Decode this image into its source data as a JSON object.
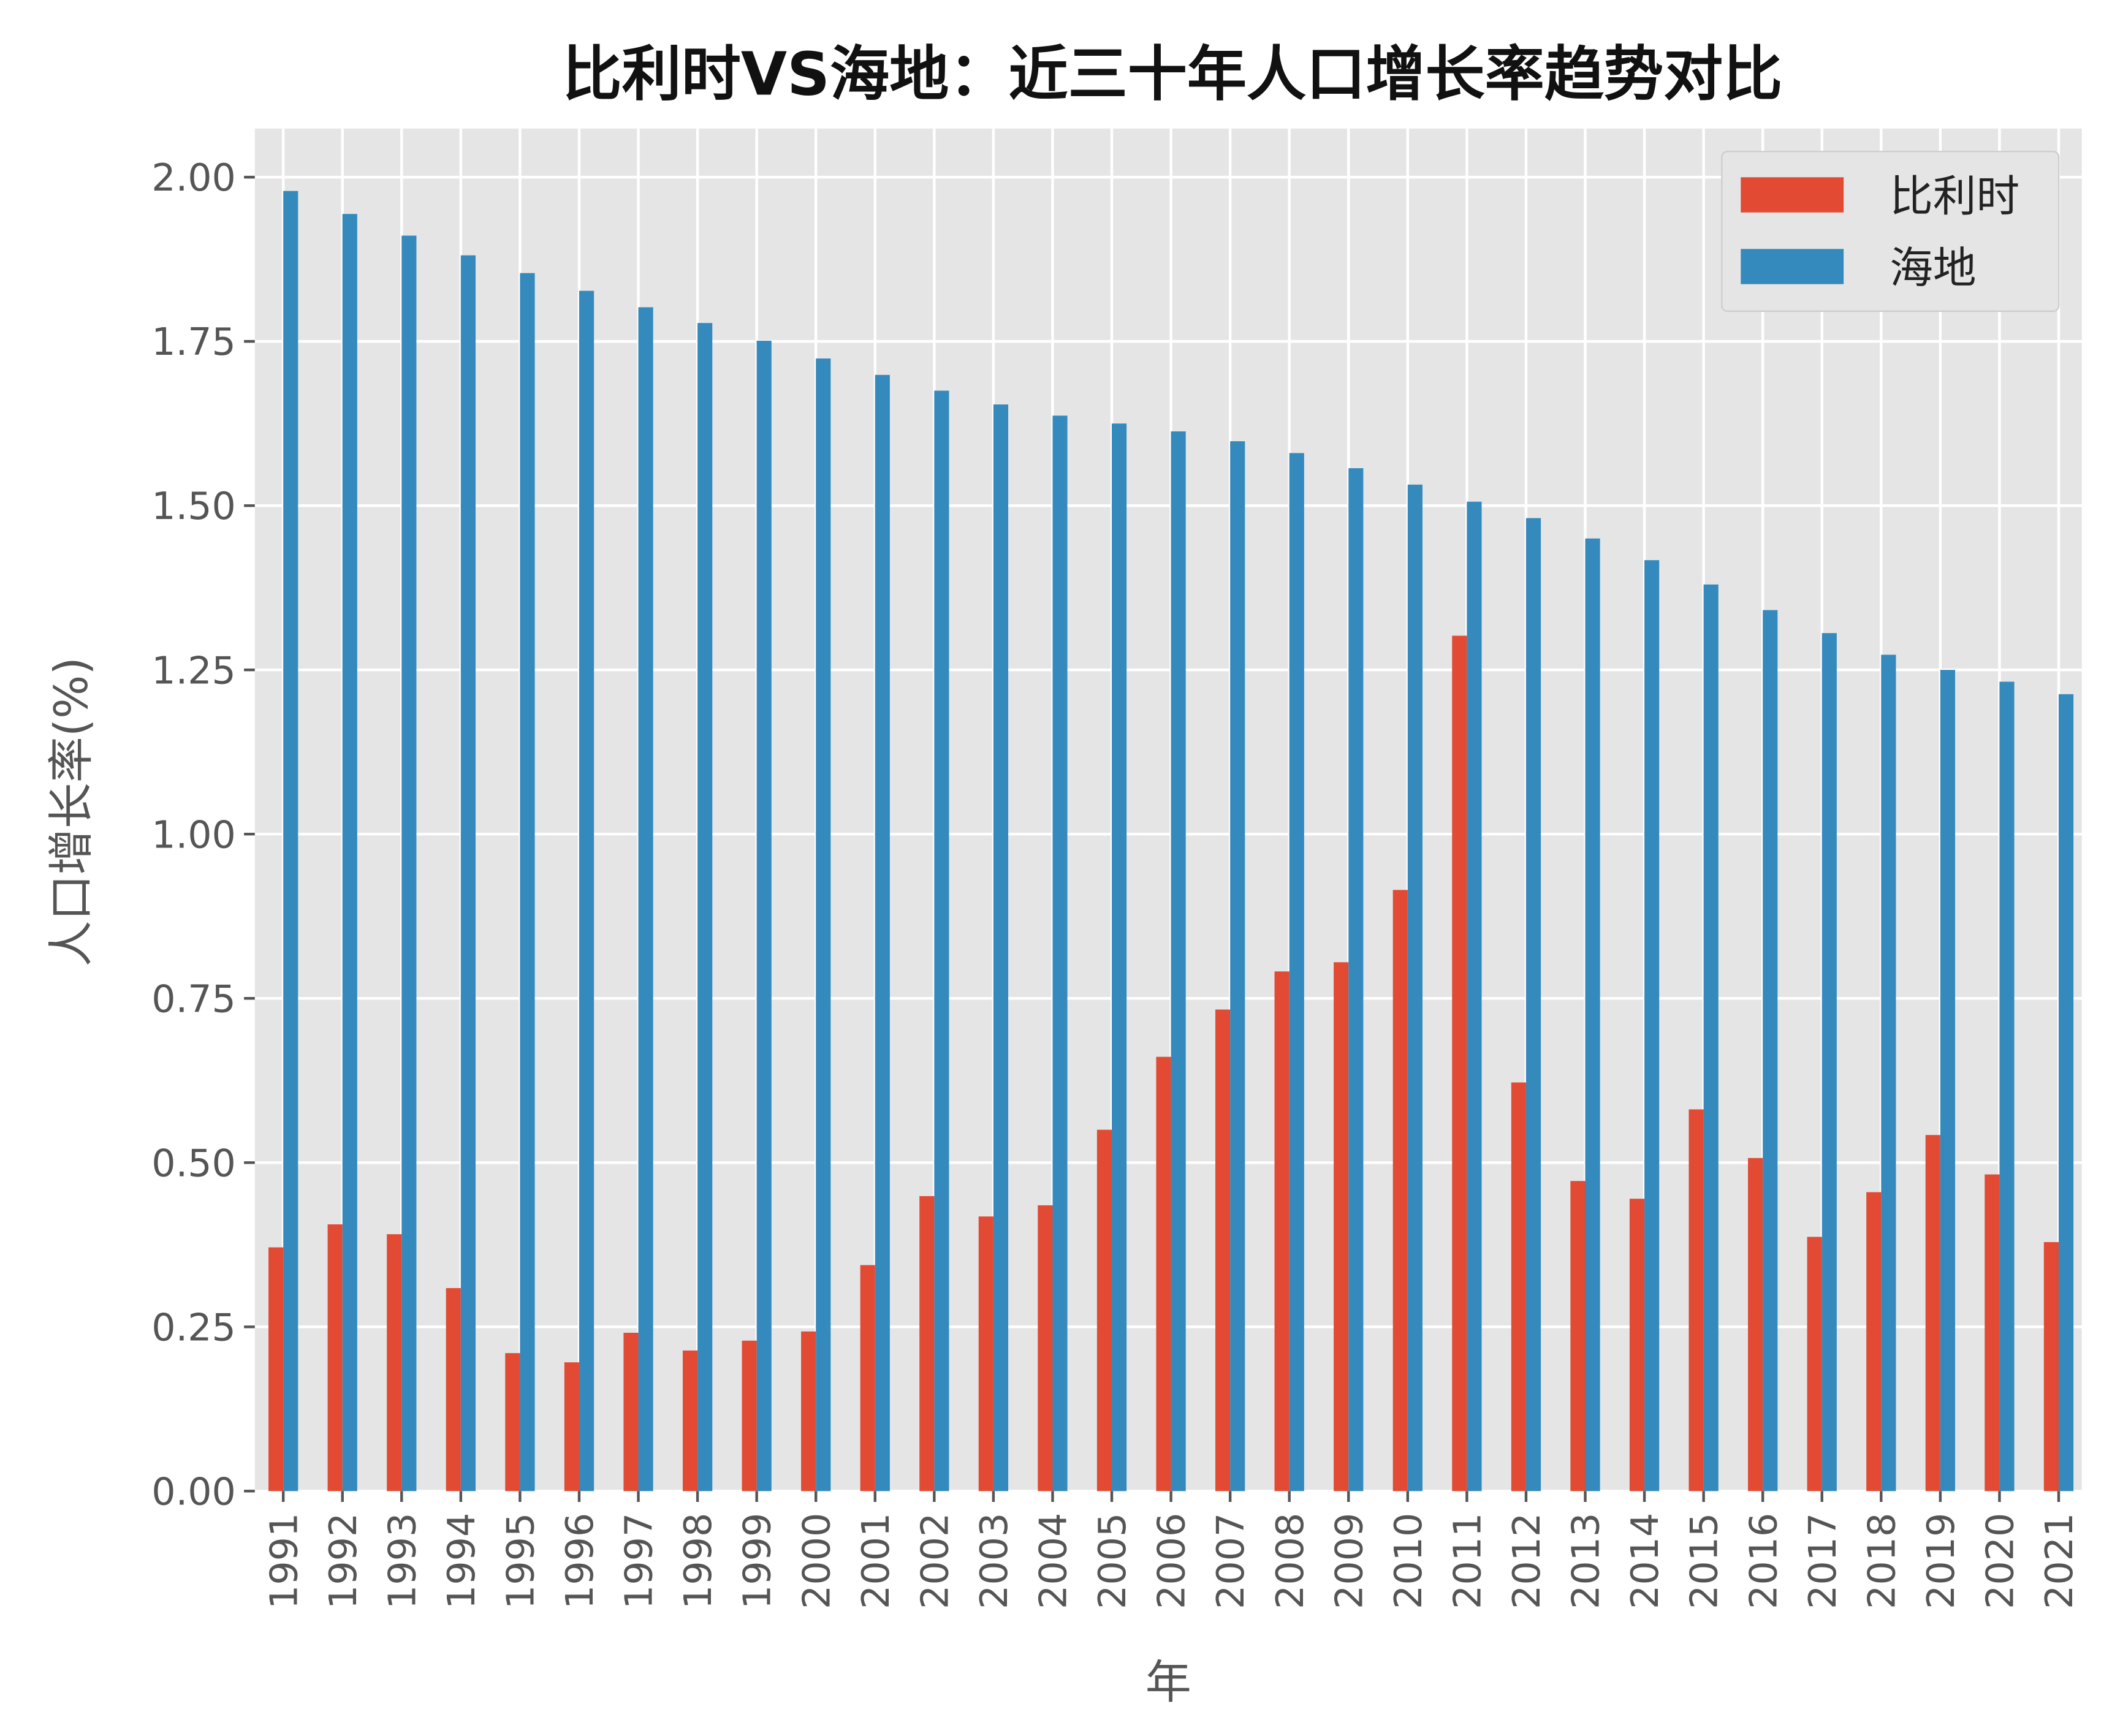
{
  "chart_data": {
    "type": "bar",
    "title": "比利时VS海地：近三十年人口增长率趋势对比",
    "xlabel": "年",
    "ylabel": "人口增长率(%)",
    "ylim": [
      0,
      2.074
    ],
    "yticks": [
      "0.00",
      "0.25",
      "0.50",
      "0.75",
      "1.00",
      "1.25",
      "1.50",
      "1.75",
      "2.00"
    ],
    "grid": true,
    "legend_position": "top-right",
    "categories": [
      "1991",
      "1992",
      "1993",
      "1994",
      "1995",
      "1996",
      "1997",
      "1998",
      "1999",
      "2000",
      "2001",
      "2002",
      "2003",
      "2004",
      "2005",
      "2006",
      "2007",
      "2008",
      "2009",
      "2010",
      "2011",
      "2012",
      "2013",
      "2014",
      "2015",
      "2016",
      "2017",
      "2018",
      "2019",
      "2020",
      "2021"
    ],
    "series": [
      {
        "name": "比利时",
        "color": "#E24A33",
        "values": [
          0.371,
          0.406,
          0.391,
          0.309,
          0.21,
          0.196,
          0.241,
          0.214,
          0.229,
          0.243,
          0.344,
          0.449,
          0.418,
          0.435,
          0.55,
          0.661,
          0.733,
          0.791,
          0.805,
          0.915,
          1.302,
          0.622,
          0.472,
          0.445,
          0.581,
          0.507,
          0.387,
          0.455,
          0.542,
          0.482,
          0.379
        ]
      },
      {
        "name": "海地",
        "color": "#348ABD",
        "values": [
          1.979,
          1.944,
          1.911,
          1.881,
          1.854,
          1.827,
          1.802,
          1.778,
          1.751,
          1.724,
          1.699,
          1.675,
          1.654,
          1.637,
          1.625,
          1.613,
          1.598,
          1.58,
          1.557,
          1.532,
          1.506,
          1.481,
          1.45,
          1.417,
          1.38,
          1.341,
          1.306,
          1.273,
          1.25,
          1.232,
          1.213
        ]
      }
    ]
  }
}
